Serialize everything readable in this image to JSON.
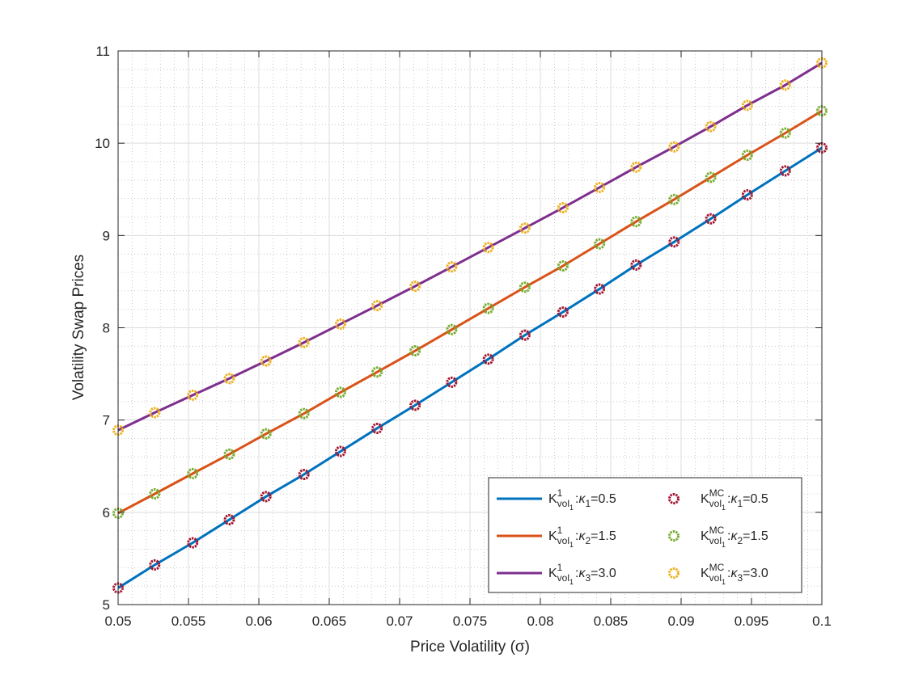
{
  "chart_data": {
    "type": "line",
    "title": "",
    "xlabel": "Price Volatility (σ)",
    "ylabel": "Volatility Swap Prices",
    "xlim": [
      0.05,
      0.1
    ],
    "ylim": [
      5,
      11
    ],
    "xticks": [
      0.05,
      0.055,
      0.06,
      0.065,
      0.07,
      0.075,
      0.08,
      0.085,
      0.09,
      0.095,
      0.1
    ],
    "xtick_labels": [
      "0.05",
      "0.055",
      "0.06",
      "0.065",
      "0.07",
      "0.075",
      "0.08",
      "0.085",
      "0.09",
      "0.095",
      "0.1"
    ],
    "yticks": [
      5,
      6,
      7,
      8,
      9,
      10,
      11
    ],
    "ytick_labels": [
      "5",
      "6",
      "7",
      "8",
      "9",
      "10",
      "11"
    ],
    "grid": true,
    "minor_grid": true,
    "legend_position": "bottom-right",
    "x": [
      0.05,
      0.0526,
      0.0553,
      0.0579,
      0.0605,
      0.0632,
      0.0658,
      0.0684,
      0.0711,
      0.0737,
      0.0763,
      0.0789,
      0.0816,
      0.0842,
      0.0868,
      0.0895,
      0.0921,
      0.0947,
      0.0974,
      0.1
    ],
    "series": [
      {
        "name": "K_vol1^1 : κ1=0.5",
        "legend": {
          "base": "K",
          "sup": "1",
          "sub": "vol",
          "subsub": "1",
          "kappa_sub": "1",
          "value": "=0.5"
        },
        "kind": "line",
        "color": "#0072BD",
        "values": [
          5.18,
          5.43,
          5.67,
          5.92,
          6.17,
          6.41,
          6.66,
          6.91,
          7.16,
          7.41,
          7.66,
          7.92,
          8.17,
          8.42,
          8.68,
          8.93,
          9.18,
          9.44,
          9.7,
          9.95
        ]
      },
      {
        "name": "K_vol1^1 : κ2=1.5",
        "legend": {
          "base": "K",
          "sup": "1",
          "sub": "vol",
          "subsub": "1",
          "kappa_sub": "2",
          "value": "=1.5"
        },
        "kind": "line",
        "color": "#D95319",
        "values": [
          5.99,
          6.2,
          6.42,
          6.63,
          6.85,
          7.07,
          7.3,
          7.52,
          7.75,
          7.98,
          8.21,
          8.44,
          8.67,
          8.91,
          9.15,
          9.39,
          9.63,
          9.87,
          10.11,
          10.35
        ]
      },
      {
        "name": "K_vol1^1 : κ3=3.0",
        "legend": {
          "base": "K",
          "sup": "1",
          "sub": "vol",
          "subsub": "1",
          "kappa_sub": "3",
          "value": "=3.0"
        },
        "kind": "line",
        "color": "#7E2F8E",
        "values": [
          6.89,
          7.08,
          7.27,
          7.45,
          7.64,
          7.84,
          8.04,
          8.24,
          8.45,
          8.66,
          8.87,
          9.08,
          9.3,
          9.52,
          9.74,
          9.96,
          10.18,
          10.41,
          10.63,
          10.87
        ]
      },
      {
        "name": "K_vol1^MC : κ1=0.5",
        "legend": {
          "base": "K",
          "sup": "MC",
          "sub": "vol",
          "subsub": "1",
          "kappa_sub": "1",
          "value": "=0.5"
        },
        "kind": "marker",
        "color": "#A2142F",
        "values": [
          5.18,
          5.43,
          5.67,
          5.92,
          6.17,
          6.41,
          6.66,
          6.91,
          7.16,
          7.41,
          7.66,
          7.92,
          8.17,
          8.42,
          8.68,
          8.93,
          9.18,
          9.44,
          9.7,
          9.95
        ]
      },
      {
        "name": "K_vol1^MC : κ2=1.5",
        "legend": {
          "base": "K",
          "sup": "MC",
          "sub": "vol",
          "subsub": "1",
          "kappa_sub": "2",
          "value": "=1.5"
        },
        "kind": "marker",
        "color": "#77AC30",
        "values": [
          5.99,
          6.2,
          6.42,
          6.63,
          6.85,
          7.07,
          7.3,
          7.52,
          7.75,
          7.98,
          8.21,
          8.44,
          8.67,
          8.91,
          9.15,
          9.39,
          9.63,
          9.87,
          10.11,
          10.35
        ]
      },
      {
        "name": "K_vol1^MC : κ3=3.0",
        "legend": {
          "base": "K",
          "sup": "MC",
          "sub": "vol",
          "subsub": "1",
          "kappa_sub": "3",
          "value": "=3.0"
        },
        "kind": "marker",
        "color": "#EDB120",
        "values": [
          6.89,
          7.08,
          7.27,
          7.45,
          7.64,
          7.84,
          8.04,
          8.24,
          8.45,
          8.66,
          8.87,
          9.08,
          9.3,
          9.52,
          9.74,
          9.96,
          10.18,
          10.41,
          10.63,
          10.87
        ]
      }
    ]
  }
}
